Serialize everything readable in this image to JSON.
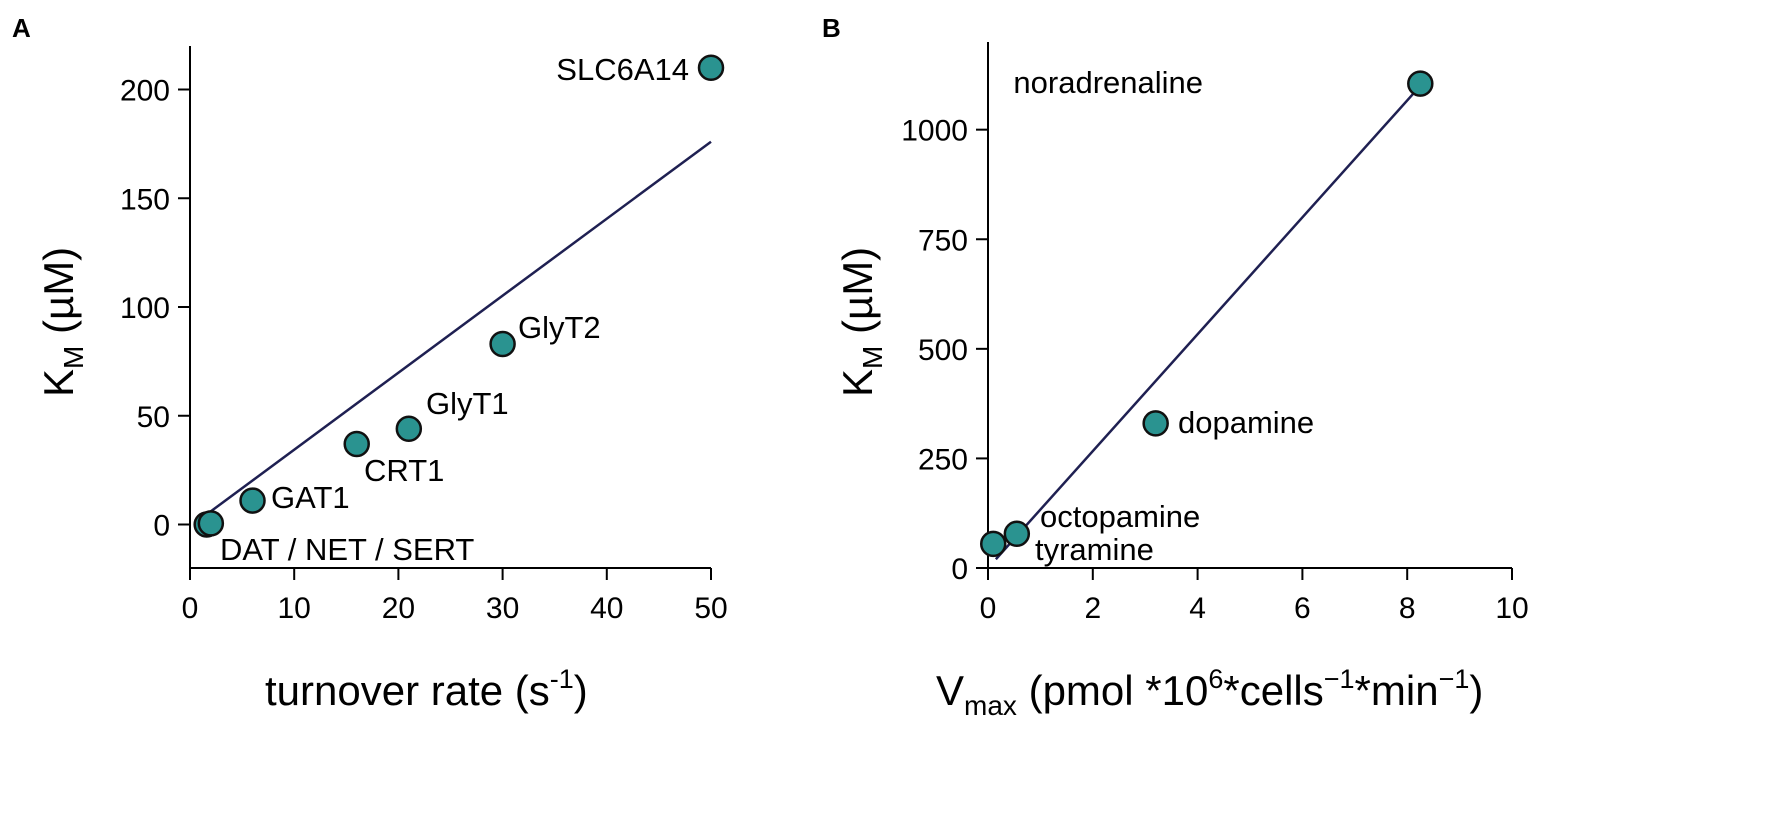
{
  "colors": {
    "marker": "#2a9390",
    "marker_edge": "#111111",
    "fit_line": "#1f2052",
    "axis": "#000000"
  },
  "chart_data": [
    {
      "panel": "A",
      "type": "scatter",
      "xlabel": {
        "main": "turnover rate (s",
        "sup": "-1",
        "close": ")"
      },
      "ylabel": {
        "main": "K",
        "sub": "M",
        "rest": " (µM)"
      },
      "xlim": [
        0,
        50
      ],
      "ylim": [
        -20,
        220
      ],
      "xticks": [
        0,
        10,
        20,
        30,
        40,
        50
      ],
      "xtick_labels": [
        "0",
        "10",
        "20",
        "30",
        "40",
        "50"
      ],
      "yticks": [
        0,
        50,
        100,
        150,
        200
      ],
      "ytick_labels": [
        "0",
        "50",
        "100",
        "150",
        "200"
      ],
      "points": [
        {
          "x": 1.6,
          "y": 0,
          "label": ""
        },
        {
          "x": 2.0,
          "y": 0.5,
          "label": "DAT / NET / SERT"
        },
        {
          "x": 6,
          "y": 11,
          "label": "GAT1"
        },
        {
          "x": 16,
          "y": 37,
          "label": "CRT1"
        },
        {
          "x": 21,
          "y": 44,
          "label": "GlyT1"
        },
        {
          "x": 30,
          "y": 83,
          "label": "GlyT2"
        },
        {
          "x": 50,
          "y": 210,
          "label": "SLC6A14"
        }
      ],
      "fit_line": {
        "x": [
          1.7,
          50
        ],
        "y": [
          5,
          176
        ]
      }
    },
    {
      "panel": "B",
      "type": "scatter",
      "xlabel": {
        "pre": "V",
        "sub": "max",
        "mid": " (pmol *10",
        "sup1": "6",
        "mid2": "*cells",
        "sup2": "−1",
        "mid3": "*min",
        "sup3": "−1",
        "close": ")"
      },
      "ylabel": {
        "main": "K",
        "sub": "M",
        "rest": " (µM)"
      },
      "xlim": [
        0,
        10
      ],
      "ylim": [
        0,
        1200
      ],
      "xticks": [
        0,
        2,
        4,
        6,
        8,
        10
      ],
      "xtick_labels": [
        "0",
        "2",
        "4",
        "6",
        "8",
        "10"
      ],
      "yticks": [
        0,
        250,
        500,
        750,
        1000
      ],
      "ytick_labels": [
        "0",
        "250",
        "500",
        "750",
        "1000"
      ],
      "points": [
        {
          "x": 0.1,
          "y": 55,
          "label": "tyramine"
        },
        {
          "x": 0.55,
          "y": 78,
          "label": "octopamine"
        },
        {
          "x": 3.2,
          "y": 330,
          "label": "dopamine"
        },
        {
          "x": 8.25,
          "y": 1105,
          "label": "noradrenaline"
        }
      ],
      "fit_line": {
        "x": [
          0.15,
          8.25
        ],
        "y": [
          20,
          1100
        ]
      }
    }
  ]
}
